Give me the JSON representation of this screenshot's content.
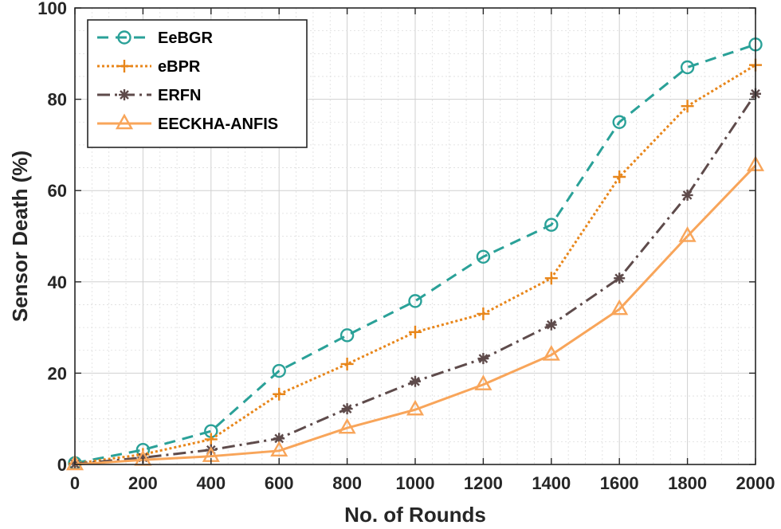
{
  "chart_data": {
    "type": "line",
    "title": "",
    "xlabel": "No. of Rounds",
    "ylabel": "Sensor Death (%)",
    "xlim": [
      0,
      2000
    ],
    "ylim": [
      0,
      100
    ],
    "x_ticks": [
      "0",
      "200",
      "400",
      "600",
      "800",
      "1000",
      "1200",
      "1400",
      "1600",
      "1800",
      "2000"
    ],
    "y_ticks": [
      "0",
      "20",
      "40",
      "60",
      "80",
      "100"
    ],
    "grid": true,
    "legend_position": "top-left",
    "x": [
      0,
      200,
      400,
      600,
      800,
      1000,
      1200,
      1400,
      1600,
      1800,
      2000
    ],
    "series": [
      {
        "name": "EeBGR",
        "color": "#2aa198",
        "dash": "dashed",
        "marker": "circle",
        "values": [
          0.3,
          3.2,
          7.3,
          20.5,
          28.3,
          35.8,
          45.5,
          52.5,
          75.0,
          87.0,
          92.0
        ]
      },
      {
        "name": "eBPR",
        "color": "#e8861a",
        "dash": "dotted",
        "marker": "plus",
        "values": [
          0.2,
          2.2,
          5.5,
          15.4,
          22.0,
          29.0,
          33.0,
          40.8,
          63.0,
          78.5,
          87.5
        ]
      },
      {
        "name": "ERFN",
        "color": "#5e4b4b",
        "dash": "dashdot",
        "marker": "asterisk",
        "values": [
          0.1,
          1.5,
          3.2,
          5.7,
          12.2,
          18.2,
          23.2,
          30.6,
          40.8,
          59.0,
          81.2
        ]
      },
      {
        "name": "EECKHA-ANFIS",
        "color": "#f8a55a",
        "dash": "solid",
        "marker": "triangle",
        "values": [
          0.0,
          1.0,
          1.8,
          3.0,
          8.0,
          12.0,
          17.5,
          24.0,
          34.0,
          50.0,
          65.5
        ]
      }
    ]
  }
}
